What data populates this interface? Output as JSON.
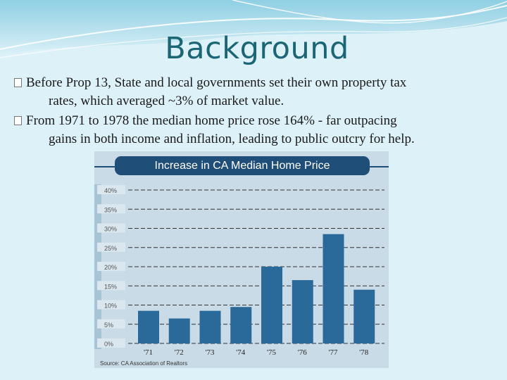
{
  "slide": {
    "title": "Background",
    "bullets": [
      {
        "line1": "Before Prop 13, State and local governments set their own property tax",
        "line2": "rates, which averaged ~3% of market value."
      },
      {
        "line1": "From 1971 to 1978 the median home price rose 164% - far outpacing",
        "line2": "gains in both income and inflation, leading to public outcry for help."
      }
    ],
    "bullet_icon": "square-bullet-icon"
  },
  "colors": {
    "background": "#ddf1f8",
    "title": "#1b6674",
    "bar": "#2a6a9a",
    "chart_title_bg": "#1f4e79",
    "chart_panel": "#c9dbe7"
  },
  "chart_data": {
    "type": "bar",
    "title": "Increase in CA Median Home Price",
    "source": "Source: CA Association of Realtors",
    "categories": [
      "'71",
      "'72",
      "'73",
      "'74",
      "'75",
      "'76",
      "'77",
      "'78"
    ],
    "values": [
      8.5,
      6.5,
      8.5,
      9.5,
      20,
      16.5,
      28.5,
      14
    ],
    "yticks": [
      "0%",
      "5%",
      "10%",
      "15%",
      "20%",
      "25%",
      "30%",
      "35%",
      "40%"
    ],
    "ylim": [
      0,
      40
    ],
    "grid": true,
    "xlabel": "",
    "ylabel": ""
  }
}
